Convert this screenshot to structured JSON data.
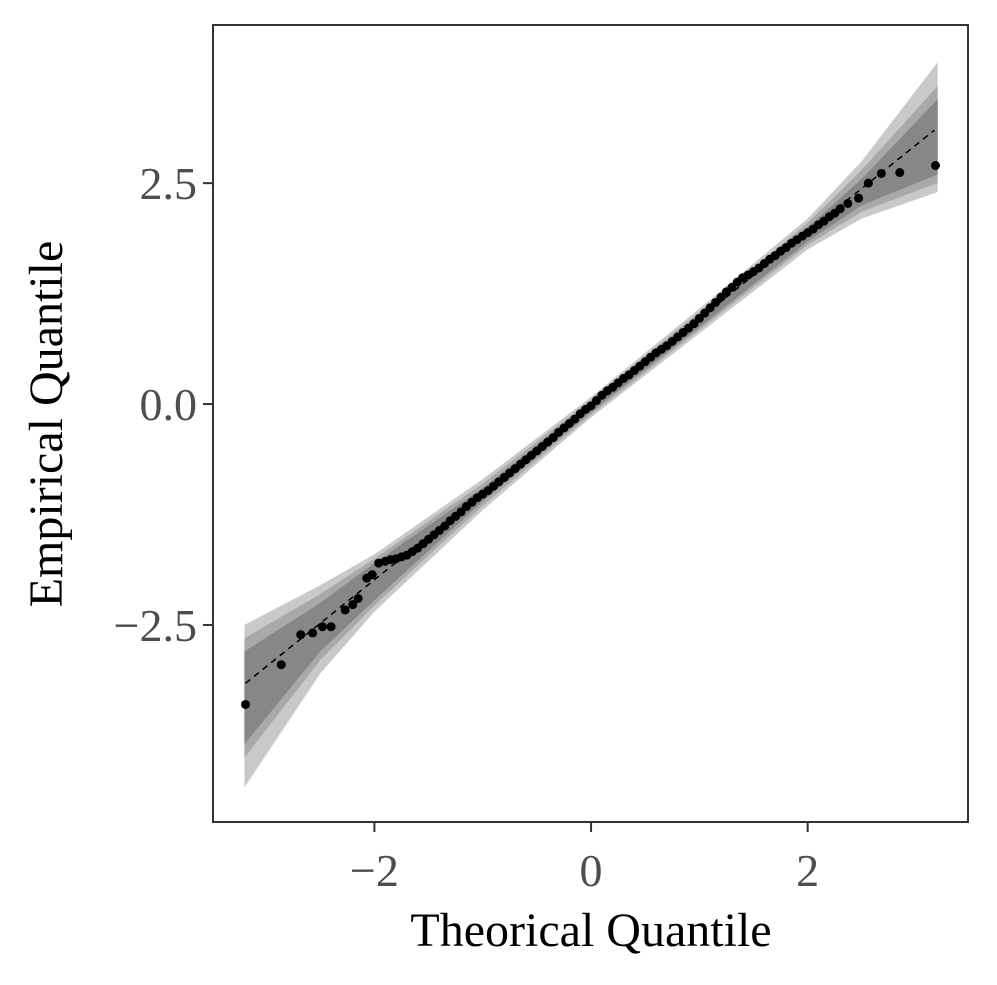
{
  "chart_data": {
    "type": "qq",
    "xlabel": "Theorical Quantile",
    "ylabel": "Empirical Quantile",
    "xlim": [
      -3.49,
      3.48
    ],
    "ylim": [
      -4.73,
      4.29
    ],
    "xticks": [
      {
        "value": -2,
        "label": "−2"
      },
      0,
      2
    ],
    "yticks": [
      {
        "value": -2.5,
        "label": "−2.5"
      },
      {
        "value": 0,
        "label": "0.0"
      },
      2.5
    ],
    "bands": [
      {
        "color": "#c9c9c9",
        "x": [
          -3.2,
          -2.5,
          -2,
          -1,
          0,
          1,
          2,
          2.5,
          3.2
        ],
        "lower": [
          -4.34,
          -3.05,
          -2.35,
          -1.2,
          -0.15,
          0.8,
          1.75,
          2.1,
          2.4
        ],
        "upper": [
          -2.5,
          -2.05,
          -1.7,
          -0.85,
          0.08,
          1.08,
          2.1,
          2.75,
          3.87
        ]
      },
      {
        "color": "#a9a9a9",
        "x": [
          -3.2,
          -2.5,
          -2,
          -1,
          0,
          1,
          2,
          2.5,
          3.2
        ],
        "lower": [
          -4.0,
          -2.9,
          -2.28,
          -1.15,
          -0.12,
          0.84,
          1.8,
          2.18,
          2.5
        ],
        "upper": [
          -2.65,
          -2.15,
          -1.75,
          -0.9,
          0.05,
          1.04,
          2.05,
          2.65,
          3.6
        ]
      },
      {
        "color": "#878787",
        "x": [
          -3.2,
          -2.5,
          -2,
          -1,
          0,
          1,
          2,
          2.5,
          3.2
        ],
        "lower": [
          -3.85,
          -2.8,
          -2.22,
          -1.1,
          -0.09,
          0.87,
          1.84,
          2.25,
          2.6
        ],
        "upper": [
          -2.8,
          -2.25,
          -1.8,
          -0.95,
          0.02,
          1.0,
          2.0,
          2.55,
          3.45
        ]
      }
    ],
    "reference_line": {
      "color": "#000000",
      "x": [
        -3.19,
        3.17
      ],
      "y": [
        -3.16,
        3.1
      ]
    },
    "points": {
      "color": "#000000",
      "x": [
        -3.19,
        -2.86,
        -2.68,
        -2.57,
        -2.48,
        -2.4,
        -2.27,
        -2.2,
        -2.15,
        -2.07,
        -2.02,
        -1.96,
        -1.9,
        -1.85,
        -1.8,
        -1.75,
        -1.7,
        -1.65,
        -1.6,
        -1.55,
        -1.5,
        -1.45,
        -1.4,
        -1.35,
        -1.3,
        -1.25,
        -1.2,
        -1.15,
        -1.1,
        -1.05,
        -1.0,
        -0.95,
        -0.9,
        -0.85,
        -0.8,
        -0.75,
        -0.7,
        -0.65,
        -0.6,
        -0.55,
        -0.5,
        -0.45,
        -0.4,
        -0.35,
        -0.3,
        -0.25,
        -0.2,
        -0.15,
        -0.1,
        -0.05,
        0,
        0.05,
        0.1,
        0.15,
        0.2,
        0.25,
        0.3,
        0.35,
        0.4,
        0.45,
        0.5,
        0.55,
        0.6,
        0.65,
        0.7,
        0.75,
        0.8,
        0.85,
        0.9,
        0.95,
        1.0,
        1.05,
        1.1,
        1.15,
        1.2,
        1.25,
        1.3,
        1.35,
        1.4,
        1.45,
        1.5,
        1.55,
        1.6,
        1.65,
        1.7,
        1.75,
        1.8,
        1.85,
        1.9,
        1.95,
        2.0,
        2.05,
        2.1,
        2.15,
        2.2,
        2.25,
        2.3,
        2.37,
        2.47,
        2.56,
        2.68,
        2.85,
        3.18
      ],
      "y": [
        -3.4,
        -2.95,
        -2.61,
        -2.59,
        -2.52,
        -2.52,
        -2.33,
        -2.27,
        -2.2,
        -1.97,
        -1.93,
        -1.8,
        -1.78,
        -1.76,
        -1.75,
        -1.73,
        -1.71,
        -1.67,
        -1.63,
        -1.58,
        -1.53,
        -1.48,
        -1.43,
        -1.38,
        -1.32,
        -1.27,
        -1.22,
        -1.16,
        -1.11,
        -1.06,
        -1.02,
        -0.98,
        -0.93,
        -0.88,
        -0.83,
        -0.78,
        -0.73,
        -0.68,
        -0.63,
        -0.58,
        -0.53,
        -0.48,
        -0.43,
        -0.38,
        -0.32,
        -0.27,
        -0.22,
        -0.17,
        -0.11,
        -0.06,
        -0.02,
        0.04,
        0.1,
        0.15,
        0.19,
        0.24,
        0.29,
        0.33,
        0.38,
        0.43,
        0.48,
        0.53,
        0.58,
        0.62,
        0.66,
        0.71,
        0.76,
        0.81,
        0.86,
        0.91,
        0.97,
        1.03,
        1.09,
        1.15,
        1.21,
        1.27,
        1.32,
        1.38,
        1.43,
        1.46,
        1.5,
        1.54,
        1.59,
        1.64,
        1.68,
        1.73,
        1.77,
        1.82,
        1.86,
        1.9,
        1.94,
        1.98,
        2.03,
        2.07,
        2.12,
        2.16,
        2.21,
        2.27,
        2.33,
        2.5,
        2.61,
        2.62,
        2.7
      ]
    }
  }
}
